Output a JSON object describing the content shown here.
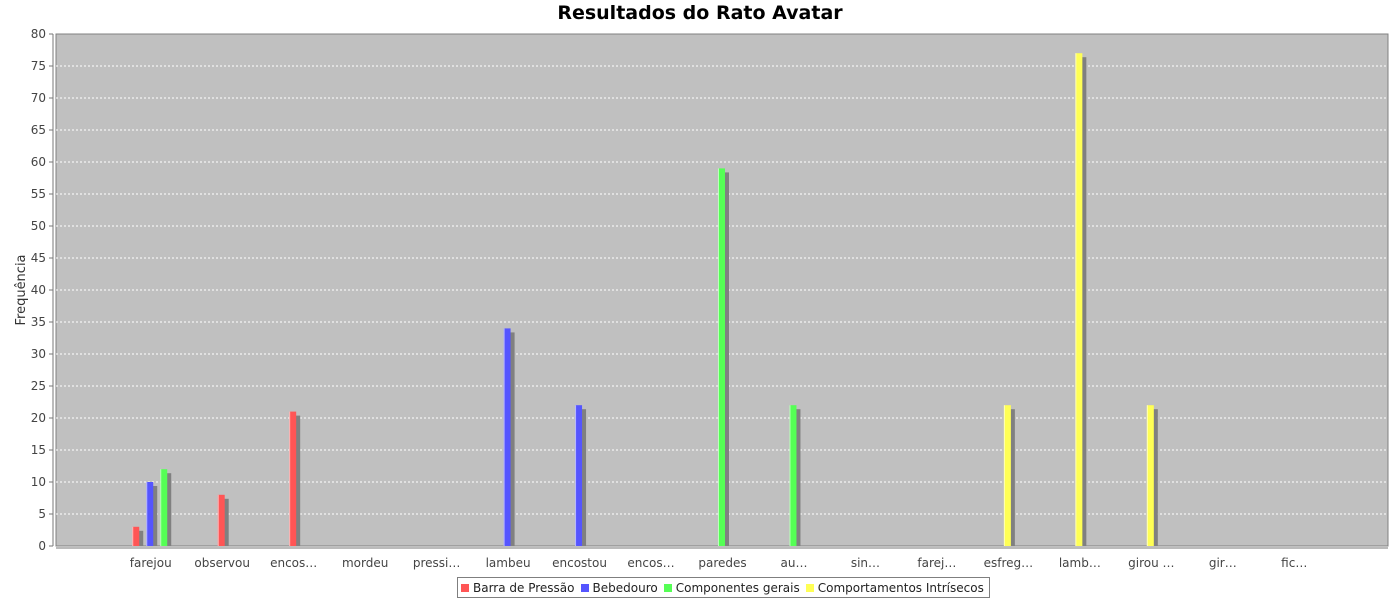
{
  "chart_data": {
    "type": "bar",
    "title": "Resultados do Rato Avatar",
    "xlabel": "",
    "ylabel": "Frequência",
    "ylim": [
      0,
      80
    ],
    "yticks": [
      0,
      5,
      10,
      15,
      20,
      25,
      30,
      35,
      40,
      45,
      50,
      55,
      60,
      65,
      70,
      75,
      80
    ],
    "grid": true,
    "legend_position": "bottom",
    "background_color": "#c0c0c0",
    "categories": [
      "farejou",
      "observou",
      "encos…",
      "mordeu",
      "pressi…",
      "lambeu",
      "encostou",
      "encos…",
      "paredes",
      "au…",
      "sin…",
      "farej…",
      "esfreg…",
      "lamb…",
      "girou …",
      "gir…",
      "fic…"
    ],
    "series": [
      {
        "name": "Barra de Pressão",
        "color": "#ff5555",
        "values": [
          3,
          8,
          21,
          0,
          0,
          0,
          0,
          0,
          0,
          0,
          0,
          0,
          0,
          0,
          0,
          0,
          0
        ]
      },
      {
        "name": "Bebedouro",
        "color": "#5555ff",
        "values": [
          10,
          0,
          0,
          0,
          0,
          34,
          22,
          0,
          0,
          0,
          0,
          0,
          0,
          0,
          0,
          0,
          0
        ]
      },
      {
        "name": "Componentes gerais",
        "color": "#55ff55",
        "values": [
          12,
          0,
          0,
          0,
          0,
          0,
          0,
          0,
          59,
          22,
          0,
          0,
          0,
          0,
          0,
          0,
          0
        ]
      },
      {
        "name": "Comportamentos Intrísecos",
        "color": "#ffff55",
        "values": [
          0,
          0,
          0,
          0,
          0,
          0,
          0,
          0,
          0,
          0,
          0,
          0,
          22,
          77,
          22,
          0,
          0
        ]
      }
    ]
  }
}
